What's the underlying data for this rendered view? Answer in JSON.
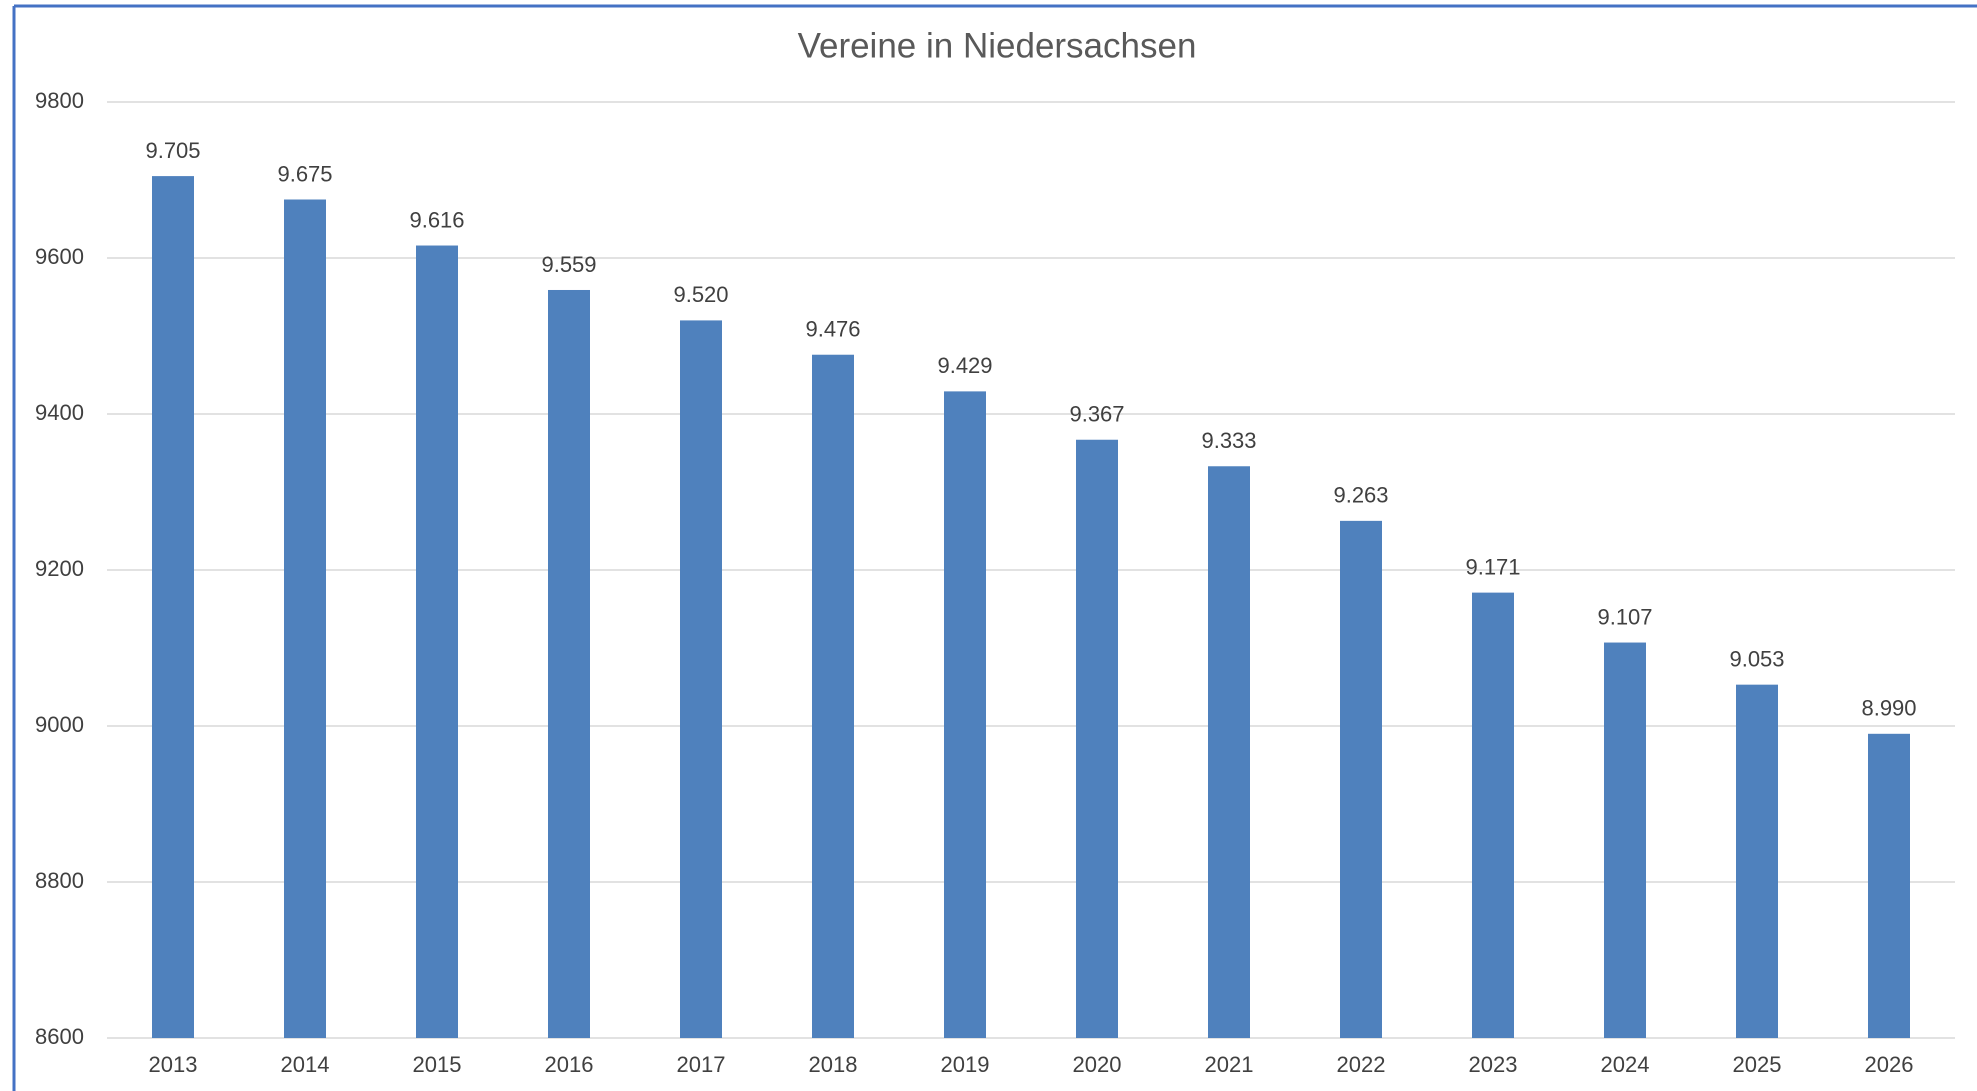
{
  "chart_data": {
    "type": "bar",
    "title": "Vereine in Niedersachsen",
    "categories": [
      "2013",
      "2014",
      "2015",
      "2016",
      "2017",
      "2018",
      "2019",
      "2020",
      "2021",
      "2022",
      "2023",
      "2024",
      "2025",
      "2026"
    ],
    "values": [
      9705,
      9675,
      9616,
      9559,
      9520,
      9476,
      9429,
      9367,
      9333,
      9263,
      9171,
      9107,
      9053,
      8990
    ],
    "value_labels": [
      "9.705",
      "9.675",
      "9.616",
      "9.559",
      "9.520",
      "9.476",
      "9.429",
      "9.367",
      "9.333",
      "9.263",
      "9.171",
      "9.107",
      "9.053",
      "8.990"
    ],
    "color": "#4f81bd",
    "ylim": [
      8600,
      9800
    ],
    "yticks": [
      8600,
      8800,
      9000,
      9200,
      9400,
      9600,
      9800
    ],
    "grid": true
  }
}
